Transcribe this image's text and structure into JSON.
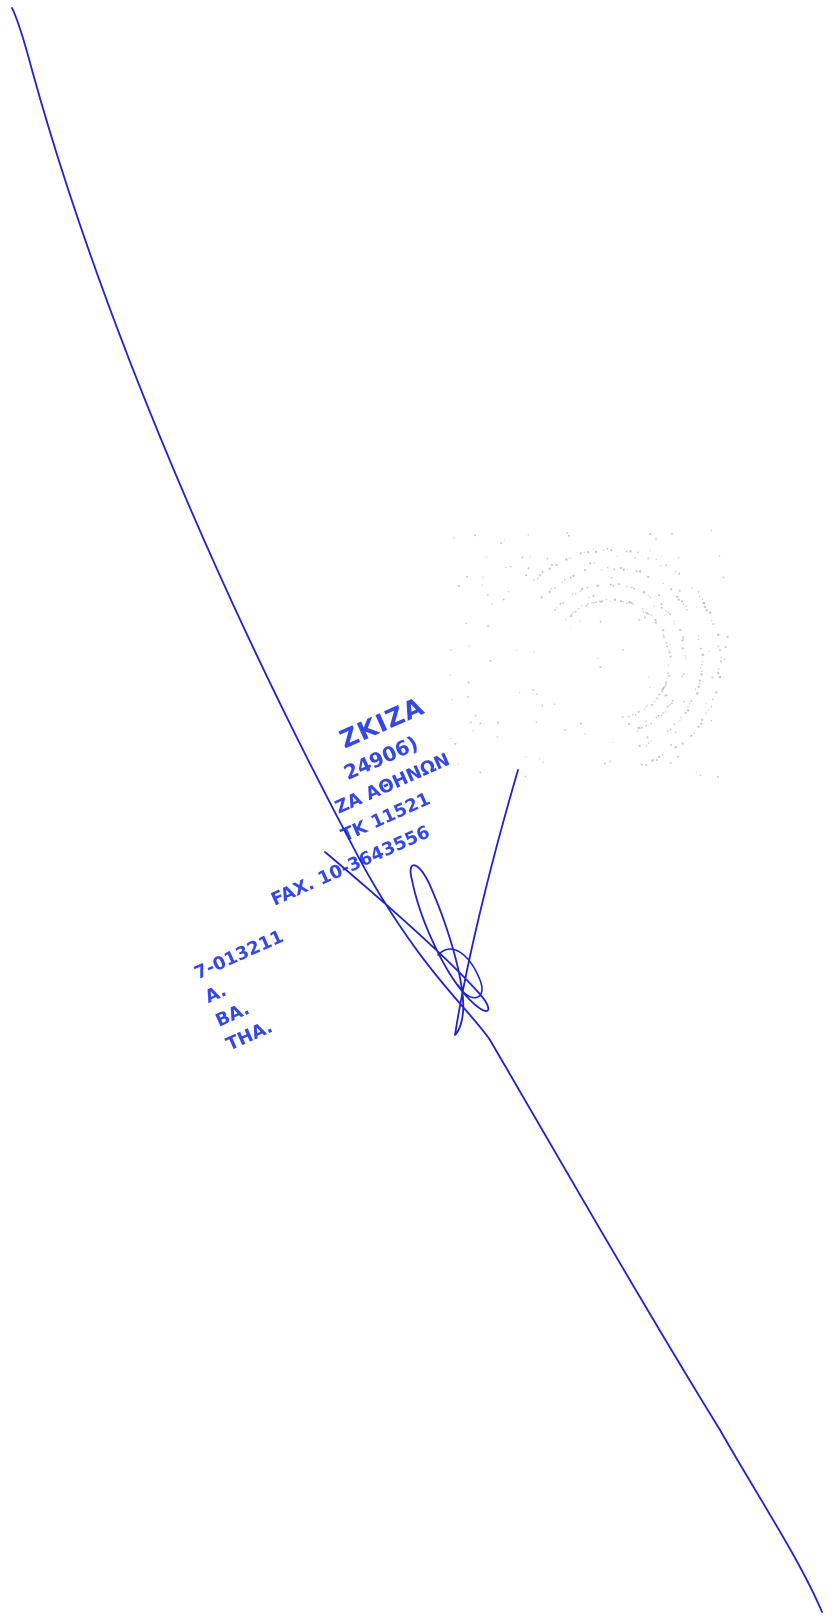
{
  "document": {
    "background_color": "#ffffff",
    "ink_color": "#1f24c9",
    "stamp_color": "#2b3fe0"
  },
  "stamp": {
    "lines": [
      "ΖKIZA",
      "24906)",
      "ZA ΑΘHNΩN",
      "TK 11521",
      "FAX. 10-3643556",
      "7-013211",
      "A.",
      "BA.",
      "THA."
    ]
  },
  "signature": {
    "kind": "handwritten"
  },
  "faint_seal": {
    "kind": "round-seal-impression"
  }
}
